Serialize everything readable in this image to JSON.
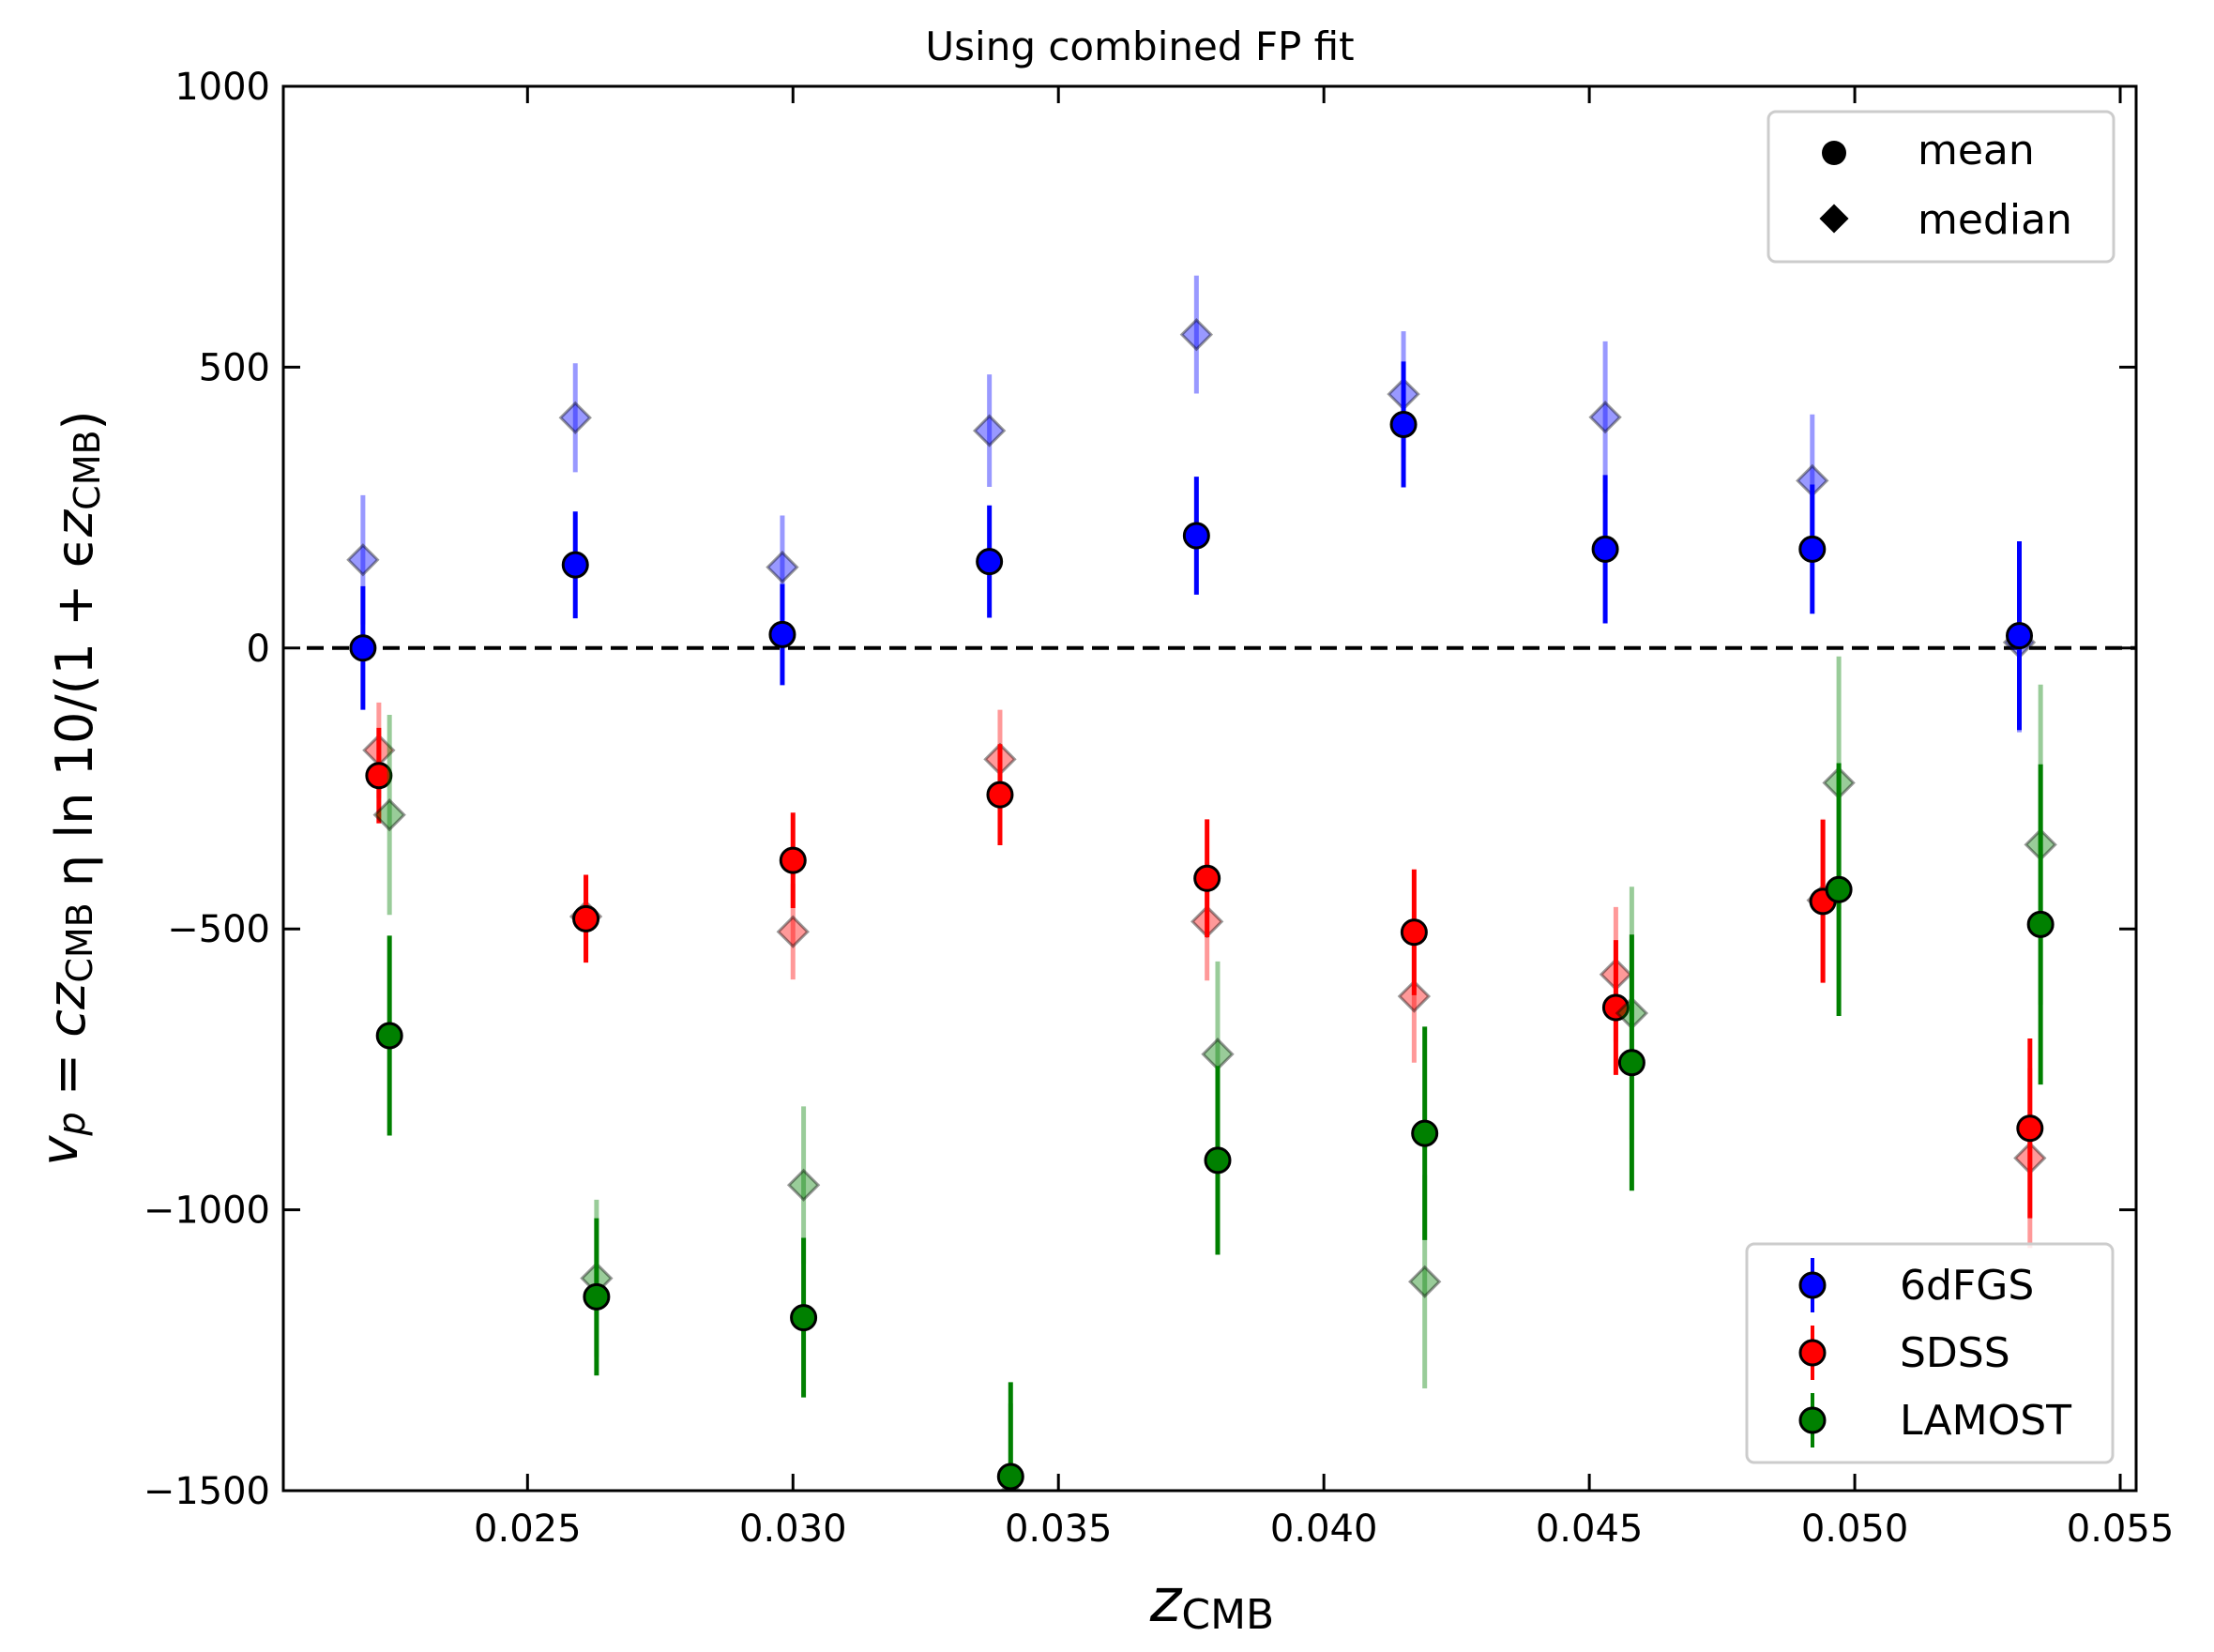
{
  "chart_data": {
    "type": "scatter",
    "title": "Using combined FP fit",
    "xlabel": {
      "main": "z",
      "sub": "CMB"
    },
    "ylabel": {
      "segments": [
        {
          "t": "v",
          "style": "italic"
        },
        {
          "t": "p",
          "style": "italic-sub"
        },
        {
          "t": " = c",
          "style": "italic-mixed"
        },
        {
          "t": "z",
          "style": "italic"
        },
        {
          "t": "CMB",
          "style": "sub"
        },
        {
          "t": " η ln 10/(1 + ϵ",
          "style": "mixed"
        },
        {
          "t": "z",
          "style": "italic"
        },
        {
          "t": "CMB",
          "style": "sub"
        },
        {
          "t": ")",
          "style": "normal"
        }
      ]
    },
    "xlim": [
      0.0204,
      0.0553
    ],
    "ylim": [
      -1500,
      1000
    ],
    "xticks": [
      0.025,
      0.03,
      0.035,
      0.04,
      0.045,
      0.05,
      0.055
    ],
    "xtick_labels": [
      "0.025",
      "0.030",
      "0.035",
      "0.040",
      "0.045",
      "0.050",
      "0.055"
    ],
    "yticks": [
      -1500,
      -1000,
      -500,
      0,
      500,
      1000
    ],
    "ytick_labels": [
      "−1500",
      "−1000",
      "−500",
      "0",
      "500",
      "1000"
    ],
    "reference_line": {
      "y": 0,
      "style": "dashed",
      "color": "#000000"
    },
    "marker_legend": {
      "position": "top-right",
      "entries": [
        {
          "label": "mean",
          "marker": "circle"
        },
        {
          "label": "median",
          "marker": "diamond"
        }
      ]
    },
    "series_legend": {
      "position": "bottom-right",
      "entries": [
        "6dFGS",
        "SDSS",
        "LAMOST"
      ]
    },
    "series": [
      {
        "name": "6dFGS",
        "color": "#0000ff",
        "mean": [
          {
            "x": 0.0219,
            "y": 0,
            "err": 110
          },
          {
            "x": 0.0259,
            "y": 148,
            "err": 95
          },
          {
            "x": 0.0298,
            "y": 24,
            "err": 90
          },
          {
            "x": 0.0337,
            "y": 154,
            "err": 100
          },
          {
            "x": 0.0376,
            "y": 200,
            "err": 105
          },
          {
            "x": 0.0415,
            "y": 398,
            "err": 112
          },
          {
            "x": 0.0453,
            "y": 176,
            "err": 132
          },
          {
            "x": 0.0492,
            "y": 176,
            "err": 115
          },
          {
            "x": 0.0531,
            "y": 22,
            "err": 168
          }
        ],
        "median": [
          {
            "x": 0.0219,
            "y": 157,
            "err": 115
          },
          {
            "x": 0.0259,
            "y": 410,
            "err": 97
          },
          {
            "x": 0.0298,
            "y": 144,
            "err": 92
          },
          {
            "x": 0.0337,
            "y": 387,
            "err": 100
          },
          {
            "x": 0.0376,
            "y": 558,
            "err": 105
          },
          {
            "x": 0.0415,
            "y": 452,
            "err": 112
          },
          {
            "x": 0.0453,
            "y": 411,
            "err": 135
          },
          {
            "x": 0.0492,
            "y": 298,
            "err": 118
          },
          {
            "x": 0.0531,
            "y": 10,
            "err": 160
          }
        ]
      },
      {
        "name": "SDSS",
        "color": "#ff0000",
        "mean": [
          {
            "x": 0.0222,
            "y": -227,
            "err": 85
          },
          {
            "x": 0.0261,
            "y": -482,
            "err": 78
          },
          {
            "x": 0.03,
            "y": -378,
            "err": 85
          },
          {
            "x": 0.0339,
            "y": -261,
            "err": 90
          },
          {
            "x": 0.0378,
            "y": -410,
            "err": 105
          },
          {
            "x": 0.0417,
            "y": -506,
            "err": 112
          },
          {
            "x": 0.0455,
            "y": -640,
            "err": 120
          },
          {
            "x": 0.0494,
            "y": -451,
            "err": 145
          },
          {
            "x": 0.0533,
            "y": -855,
            "err": 160
          }
        ],
        "median": [
          {
            "x": 0.0222,
            "y": -182,
            "err": 85
          },
          {
            "x": 0.0261,
            "y": -478,
            "err": 75
          },
          {
            "x": 0.03,
            "y": -505,
            "err": 85
          },
          {
            "x": 0.0339,
            "y": -198,
            "err": 88
          },
          {
            "x": 0.0378,
            "y": -487,
            "err": 105
          },
          {
            "x": 0.0417,
            "y": -620,
            "err": 118
          },
          {
            "x": 0.0455,
            "y": -581,
            "err": 120
          },
          {
            "x": 0.0494,
            "y": -449,
            "err": 145
          },
          {
            "x": 0.0533,
            "y": -908,
            "err": 160
          }
        ]
      },
      {
        "name": "LAMOST",
        "color": "#008000",
        "mean": [
          {
            "x": 0.0224,
            "y": -690,
            "err": 178
          },
          {
            "x": 0.0263,
            "y": -1155,
            "err": 140
          },
          {
            "x": 0.0302,
            "y": -1192,
            "err": 142
          },
          {
            "x": 0.0341,
            "y": -1475,
            "err": 168
          },
          {
            "x": 0.038,
            "y": -912,
            "err": 168
          },
          {
            "x": 0.0419,
            "y": -864,
            "err": 190
          },
          {
            "x": 0.0458,
            "y": -738,
            "err": 228
          },
          {
            "x": 0.0497,
            "y": -430,
            "err": 225
          },
          {
            "x": 0.0535,
            "y": -492,
            "err": 285
          }
        ],
        "median": [
          {
            "x": 0.0224,
            "y": -297,
            "err": 178
          },
          {
            "x": 0.0263,
            "y": -1122,
            "err": 140
          },
          {
            "x": 0.0302,
            "y": -956,
            "err": 140
          },
          {
            "x": 0.0341,
            "y": -1510,
            "err": 165
          },
          {
            "x": 0.038,
            "y": -723,
            "err": 165
          },
          {
            "x": 0.0419,
            "y": -1128,
            "err": 190
          },
          {
            "x": 0.0458,
            "y": -650,
            "err": 225
          },
          {
            "x": 0.0497,
            "y": -240,
            "err": 225
          },
          {
            "x": 0.0535,
            "y": -350,
            "err": 285
          }
        ]
      }
    ]
  }
}
